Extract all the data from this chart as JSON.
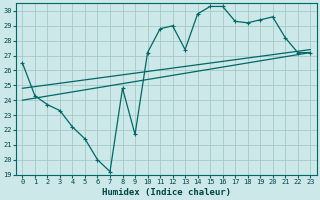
{
  "xlabel": "Humidex (Indice chaleur)",
  "background_color": "#cce8e8",
  "grid_color": "#a8c8c8",
  "line_color": "#006868",
  "xlim": [
    -0.5,
    23.5
  ],
  "ylim": [
    19,
    30.5
  ],
  "yticks": [
    19,
    20,
    21,
    22,
    23,
    24,
    25,
    26,
    27,
    28,
    29,
    30
  ],
  "xticks": [
    0,
    1,
    2,
    3,
    4,
    5,
    6,
    7,
    8,
    9,
    10,
    11,
    12,
    13,
    14,
    15,
    16,
    17,
    18,
    19,
    20,
    21,
    22,
    23
  ],
  "series1_x": [
    0,
    1,
    2,
    3,
    4,
    5,
    6,
    7,
    8,
    9,
    10,
    11,
    12,
    13,
    14,
    15,
    16,
    17,
    18,
    19,
    20,
    21,
    22,
    23
  ],
  "series1_y": [
    26.5,
    24.3,
    23.7,
    23.3,
    22.2,
    21.4,
    20.0,
    19.2,
    24.8,
    21.7,
    27.2,
    28.8,
    29.0,
    27.4,
    29.8,
    30.3,
    30.3,
    29.3,
    29.2,
    29.4,
    29.6,
    28.2,
    27.2,
    27.2
  ],
  "series2_x": [
    0,
    23
  ],
  "series2_y": [
    24.0,
    27.2
  ],
  "series3_x": [
    0,
    23
  ],
  "series3_y": [
    24.8,
    27.4
  ]
}
